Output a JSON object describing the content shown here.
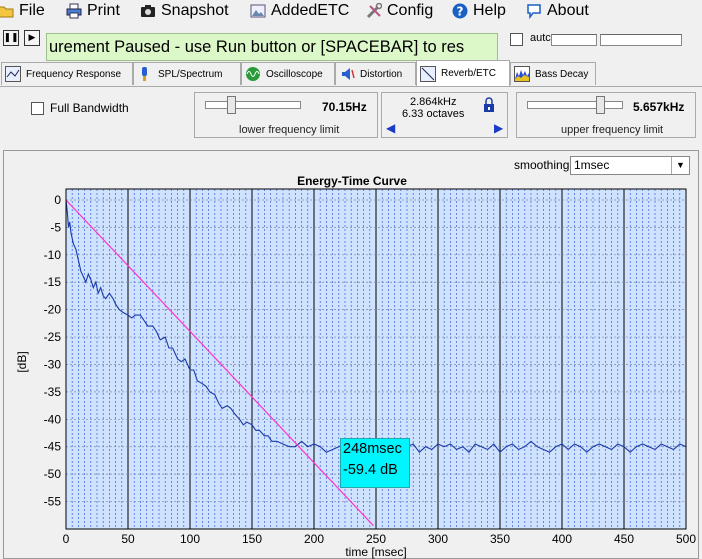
{
  "menu": {
    "items": [
      {
        "label": "File",
        "icon": "folder-icon"
      },
      {
        "label": "Print",
        "icon": "printer-icon"
      },
      {
        "label": "Snapshot",
        "icon": "camera-icon"
      },
      {
        "label": "AddedETC",
        "icon": "image-icon"
      },
      {
        "label": "Config",
        "icon": "tools-icon"
      },
      {
        "label": "Help",
        "icon": "help-icon"
      },
      {
        "label": "About",
        "icon": "chat-icon"
      }
    ]
  },
  "transport": {
    "pause_glyph": "❚❚",
    "play_glyph": "▶",
    "status_text": "urement Paused - use Run button or [SPACEBAR] to res",
    "auto_label": "autc"
  },
  "tabs": [
    {
      "label": "Frequency Response",
      "icon": "frequency-response-icon"
    },
    {
      "label": "SPL/Spectrum",
      "icon": "spl-icon"
    },
    {
      "label": "Oscilloscope",
      "icon": "oscilloscope-icon"
    },
    {
      "label": "Distortion",
      "icon": "distortion-icon"
    },
    {
      "label": "Reverb/ETC",
      "icon": "reverb-icon",
      "active": true
    },
    {
      "label": "Bass Decay",
      "icon": "bass-decay-icon"
    }
  ],
  "controls": {
    "full_bandwidth_label": "Full Bandwidth",
    "lower": {
      "value": "70.15Hz",
      "caption": "lower frequency limit",
      "slider_fraction": 0.25
    },
    "band": {
      "width": "2.864kHz",
      "octaves": "6.33 octaves",
      "left_arrow": "◀",
      "right_arrow": "▶"
    },
    "upper": {
      "value": "5.657kHz",
      "caption": "upper frequency limit",
      "slider_fraction": 0.8
    }
  },
  "smoothing": {
    "label": "smoothing",
    "value": "1msec"
  },
  "tooltip": {
    "line1": "248msec",
    "line2": "-59.4 dB"
  },
  "chart_data": {
    "type": "line",
    "title": "Energy-Time Curve",
    "xlabel": "time [msec]",
    "ylabel": "[dB]",
    "xlim": [
      0,
      500
    ],
    "ylim": [
      -60,
      2
    ],
    "xticks": [
      0,
      50,
      100,
      150,
      200,
      250,
      300,
      350,
      400,
      450,
      500
    ],
    "yticks": [
      0,
      -5,
      -10,
      -15,
      -20,
      -25,
      -30,
      -35,
      -40,
      -45,
      -50,
      -55
    ],
    "grid": true,
    "background_color": "#cfe3ff",
    "colors": {
      "etc": "#1a3aa8",
      "decay_line": "#ff33cc"
    },
    "series": [
      {
        "kind": "etc",
        "x": [
          0,
          1,
          2,
          3,
          4,
          6,
          8,
          10,
          12,
          14,
          16,
          18,
          20,
          22,
          24,
          26,
          28,
          30,
          32,
          35,
          38,
          40,
          43,
          46,
          50,
          53,
          56,
          60,
          63,
          66,
          70,
          73,
          76,
          80,
          83,
          86,
          90,
          93,
          96,
          100,
          103,
          106,
          110,
          113,
          116,
          120,
          123,
          126,
          130,
          133,
          136,
          140,
          143,
          146,
          150,
          153,
          156,
          160,
          163,
          166,
          170,
          175,
          180,
          185,
          190,
          195,
          200,
          205,
          210,
          215,
          220,
          225,
          230,
          235,
          240,
          245,
          250,
          255,
          260,
          265,
          270,
          275,
          280,
          285,
          290,
          295,
          300,
          305,
          310,
          315,
          320,
          325,
          330,
          335,
          340,
          345,
          350,
          355,
          360,
          365,
          370,
          375,
          380,
          385,
          390,
          395,
          400,
          405,
          410,
          415,
          420,
          425,
          430,
          435,
          440,
          445,
          450,
          455,
          460,
          465,
          470,
          475,
          480,
          485,
          490,
          495,
          500
        ],
        "y": [
          0,
          -2,
          -5,
          -4,
          -6,
          -8,
          -9,
          -11,
          -13,
          -14,
          -15,
          -13.5,
          -14.5,
          -16,
          -15,
          -17,
          -16,
          -17.5,
          -18,
          -17,
          -18,
          -19,
          -20,
          -20.5,
          -21,
          -21.5,
          -21,
          -21,
          -22,
          -23,
          -23,
          -24,
          -25.5,
          -25,
          -27,
          -27,
          -29,
          -29.5,
          -29,
          -31,
          -31,
          -33,
          -33.5,
          -34,
          -35,
          -35.5,
          -37,
          -38,
          -37.5,
          -38,
          -39,
          -40,
          -41,
          -40.5,
          -41,
          -42,
          -42,
          -43,
          -43,
          -44,
          -44,
          -44.5,
          -45,
          -45,
          -44,
          -45,
          -44.5,
          -45,
          -46,
          -45.5,
          -45,
          -44.5,
          -45.5,
          -46,
          -44.5,
          -45,
          -46,
          -45,
          -44.5,
          -45.5,
          -46,
          -45,
          -44.5,
          -46,
          -45,
          -45.5,
          -44.5,
          -45,
          -44.5,
          -45.5,
          -45,
          -46,
          -44.5,
          -45,
          -45.5,
          -44.5,
          -46,
          -45,
          -44.5,
          -45.5,
          -45,
          -44,
          -45,
          -45.5,
          -46,
          -45,
          -44.5,
          -45.5,
          -44.5,
          -45,
          -46,
          -45,
          -44.5,
          -45,
          -45.5,
          -44.5,
          -45,
          -46,
          -45,
          -44.5,
          -45,
          -45.5,
          -44.5,
          -45,
          -45.5,
          -44.5,
          -45
        ]
      },
      {
        "kind": "decay_line",
        "x": [
          0,
          248
        ],
        "y": [
          0,
          -59.4
        ]
      }
    ]
  }
}
